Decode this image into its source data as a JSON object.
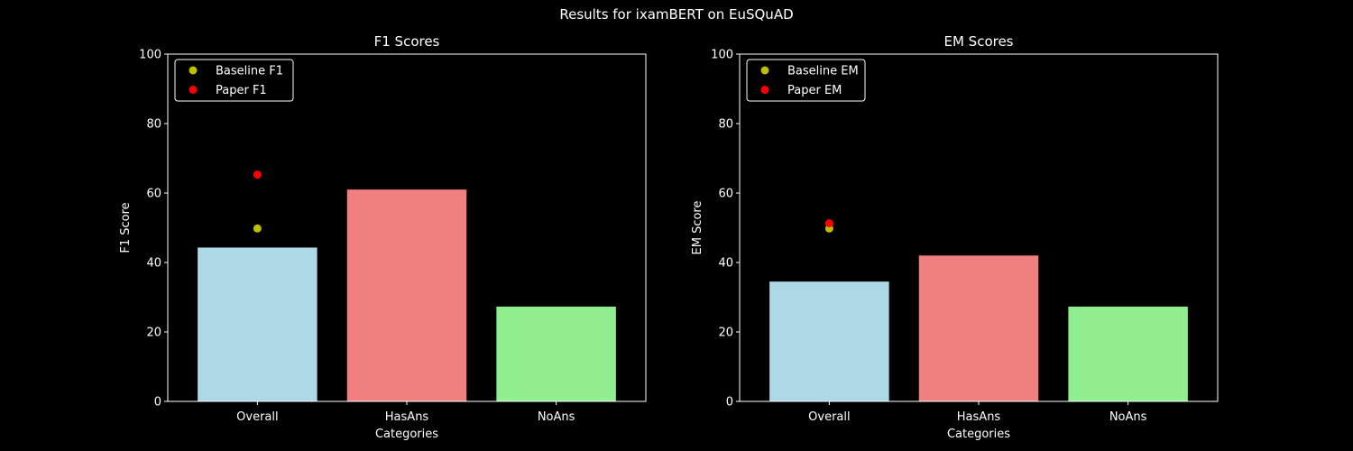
{
  "figure_title": "Results for ixamBERT on EuSQuAD",
  "theme": {
    "background": "#000000",
    "foreground": "#ffffff"
  },
  "chart_data": [
    {
      "type": "bar",
      "title": "F1 Scores",
      "xlabel": "Categories",
      "ylabel": "F1 Score",
      "ylim": [
        0,
        100
      ],
      "yticks": [
        0,
        20,
        40,
        60,
        80,
        100
      ],
      "categories": [
        "Overall",
        "HasAns",
        "NoAns"
      ],
      "values": [
        44.3,
        61.0,
        27.3
      ],
      "bar_colors": [
        "#add8e6",
        "#f08080",
        "#90ee90"
      ],
      "points": [
        {
          "name": "Baseline F1",
          "color": "#bfbf00",
          "category": "Overall",
          "value": 49.8
        },
        {
          "name": "Paper F1",
          "color": "#ff0000",
          "category": "Overall",
          "value": 65.3
        }
      ],
      "legend": {
        "placement": "upper-left",
        "entries": [
          {
            "label": "Baseline F1",
            "color": "#bfbf00"
          },
          {
            "label": "Paper F1",
            "color": "#ff0000"
          }
        ]
      },
      "grid": false
    },
    {
      "type": "bar",
      "title": "EM Scores",
      "xlabel": "Categories",
      "ylabel": "EM Score",
      "ylim": [
        0,
        100
      ],
      "yticks": [
        0,
        20,
        40,
        60,
        80,
        100
      ],
      "categories": [
        "Overall",
        "HasAns",
        "NoAns"
      ],
      "values": [
        34.5,
        42.0,
        27.3
      ],
      "bar_colors": [
        "#add8e6",
        "#f08080",
        "#90ee90"
      ],
      "points": [
        {
          "name": "Baseline EM",
          "color": "#bfbf00",
          "category": "Overall",
          "value": 49.8
        },
        {
          "name": "Paper EM",
          "color": "#ff0000",
          "category": "Overall",
          "value": 51.3
        }
      ],
      "legend": {
        "placement": "upper-left",
        "entries": [
          {
            "label": "Baseline EM",
            "color": "#bfbf00"
          },
          {
            "label": "Paper EM",
            "color": "#ff0000"
          }
        ]
      },
      "grid": false
    }
  ]
}
